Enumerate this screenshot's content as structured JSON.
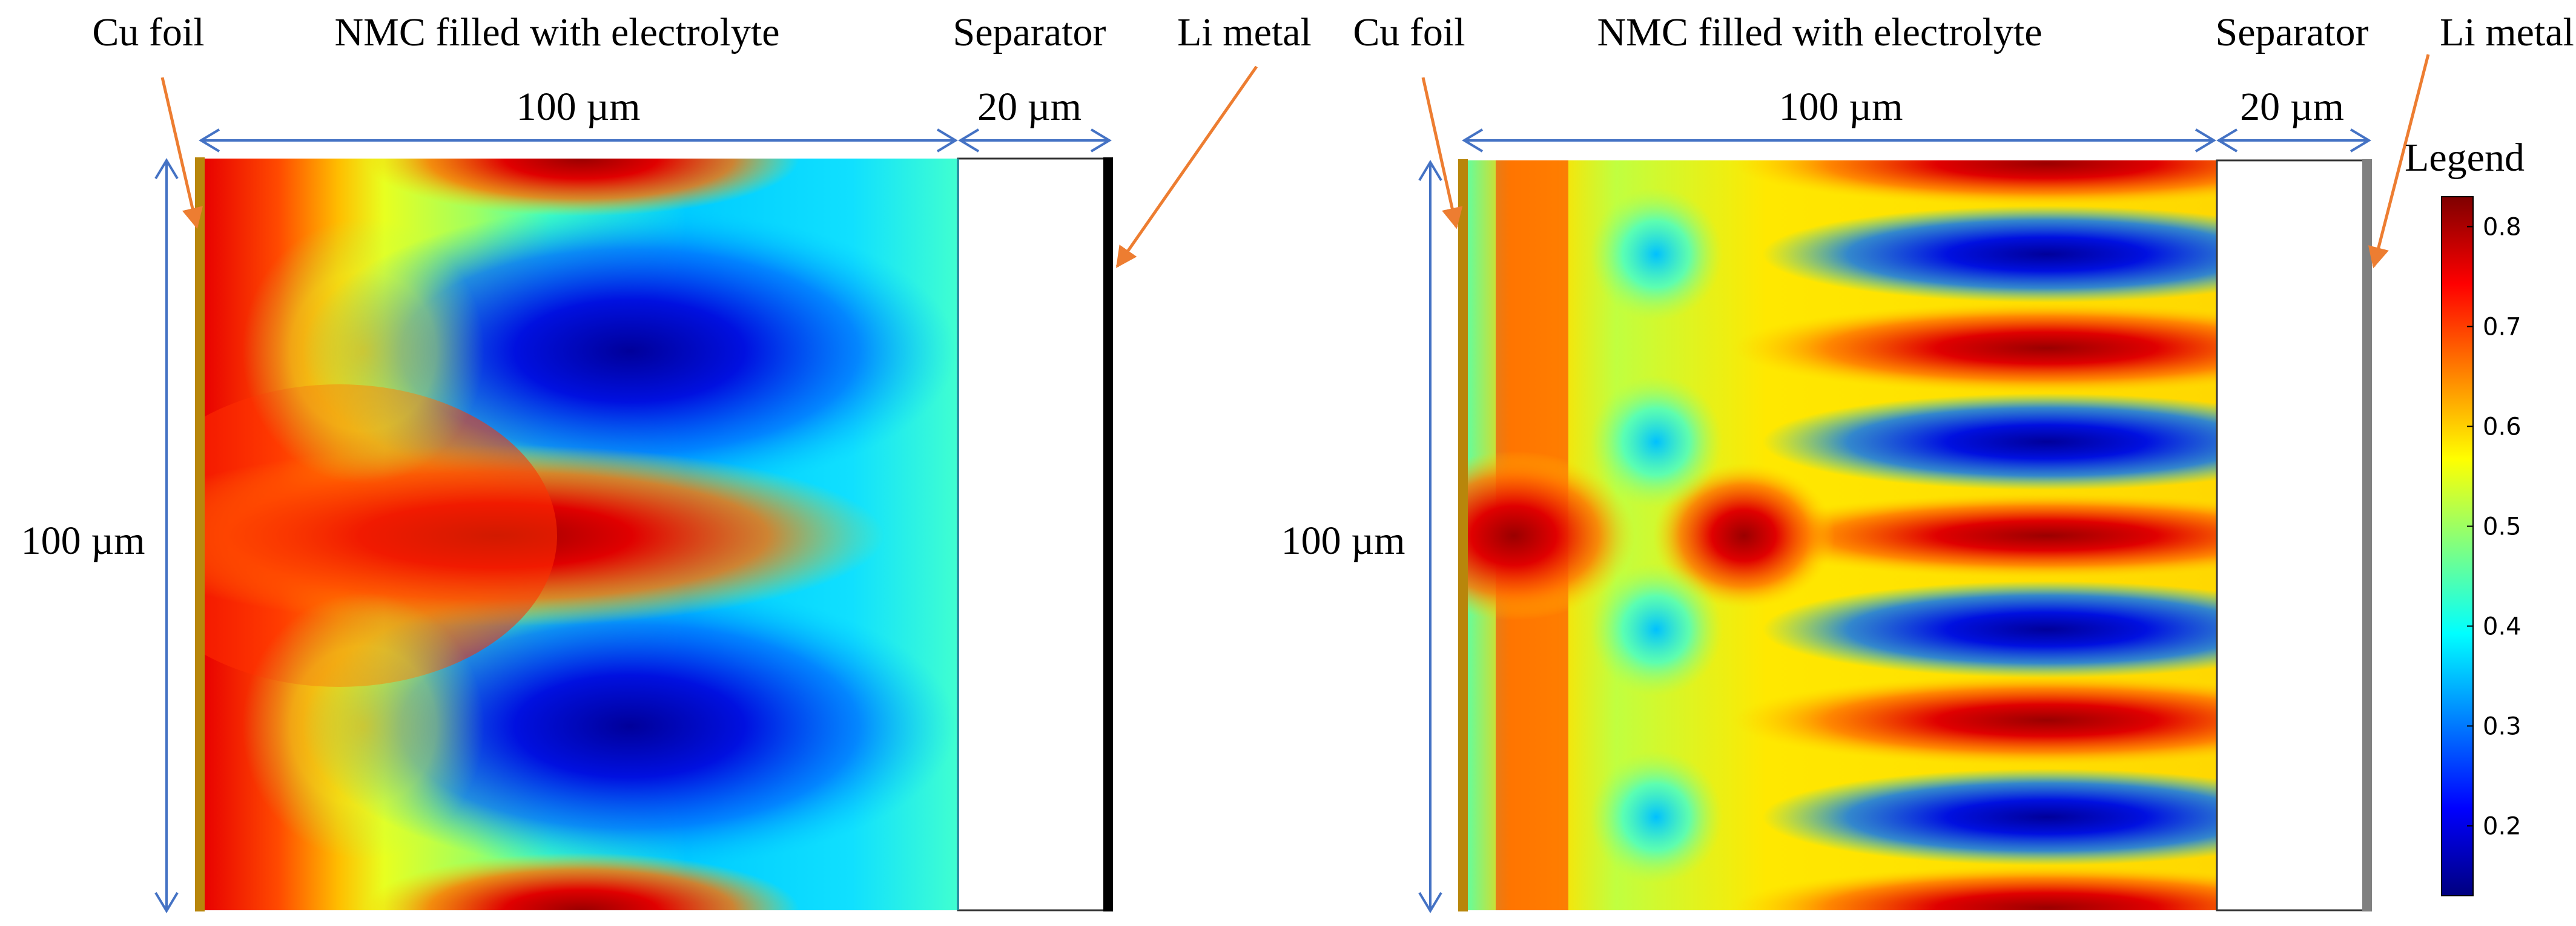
{
  "left_panel": {
    "labels": {
      "cu_foil": "Cu foil",
      "nmc": "NMC filled with electrolyte",
      "separator": "Separator",
      "li_metal": "Li metal",
      "width_nmc": "100 µm",
      "width_separator": "20 µm",
      "height": "100 µm"
    }
  },
  "right_panel": {
    "labels": {
      "cu_foil": "Cu foil",
      "nmc": "NMC filled with electrolyte",
      "separator": "Separator",
      "li_metal": "Li metal",
      "width_nmc": "100 µm",
      "width_separator": "20 µm",
      "height": "100 µm"
    }
  },
  "legend": {
    "title": "Legend",
    "ticks": [
      "0.8",
      "0.7",
      "0.6",
      "0.5",
      "0.4",
      "0.3",
      "0.2"
    ],
    "range": [
      0.13,
      0.83
    ]
  },
  "colors": {
    "cu_foil": "#b8860b",
    "arrow_orange": "#ed7d31",
    "dimension_blue": "#4472c4",
    "li_metal_left": "#000000",
    "li_metal_right": "#808080"
  }
}
